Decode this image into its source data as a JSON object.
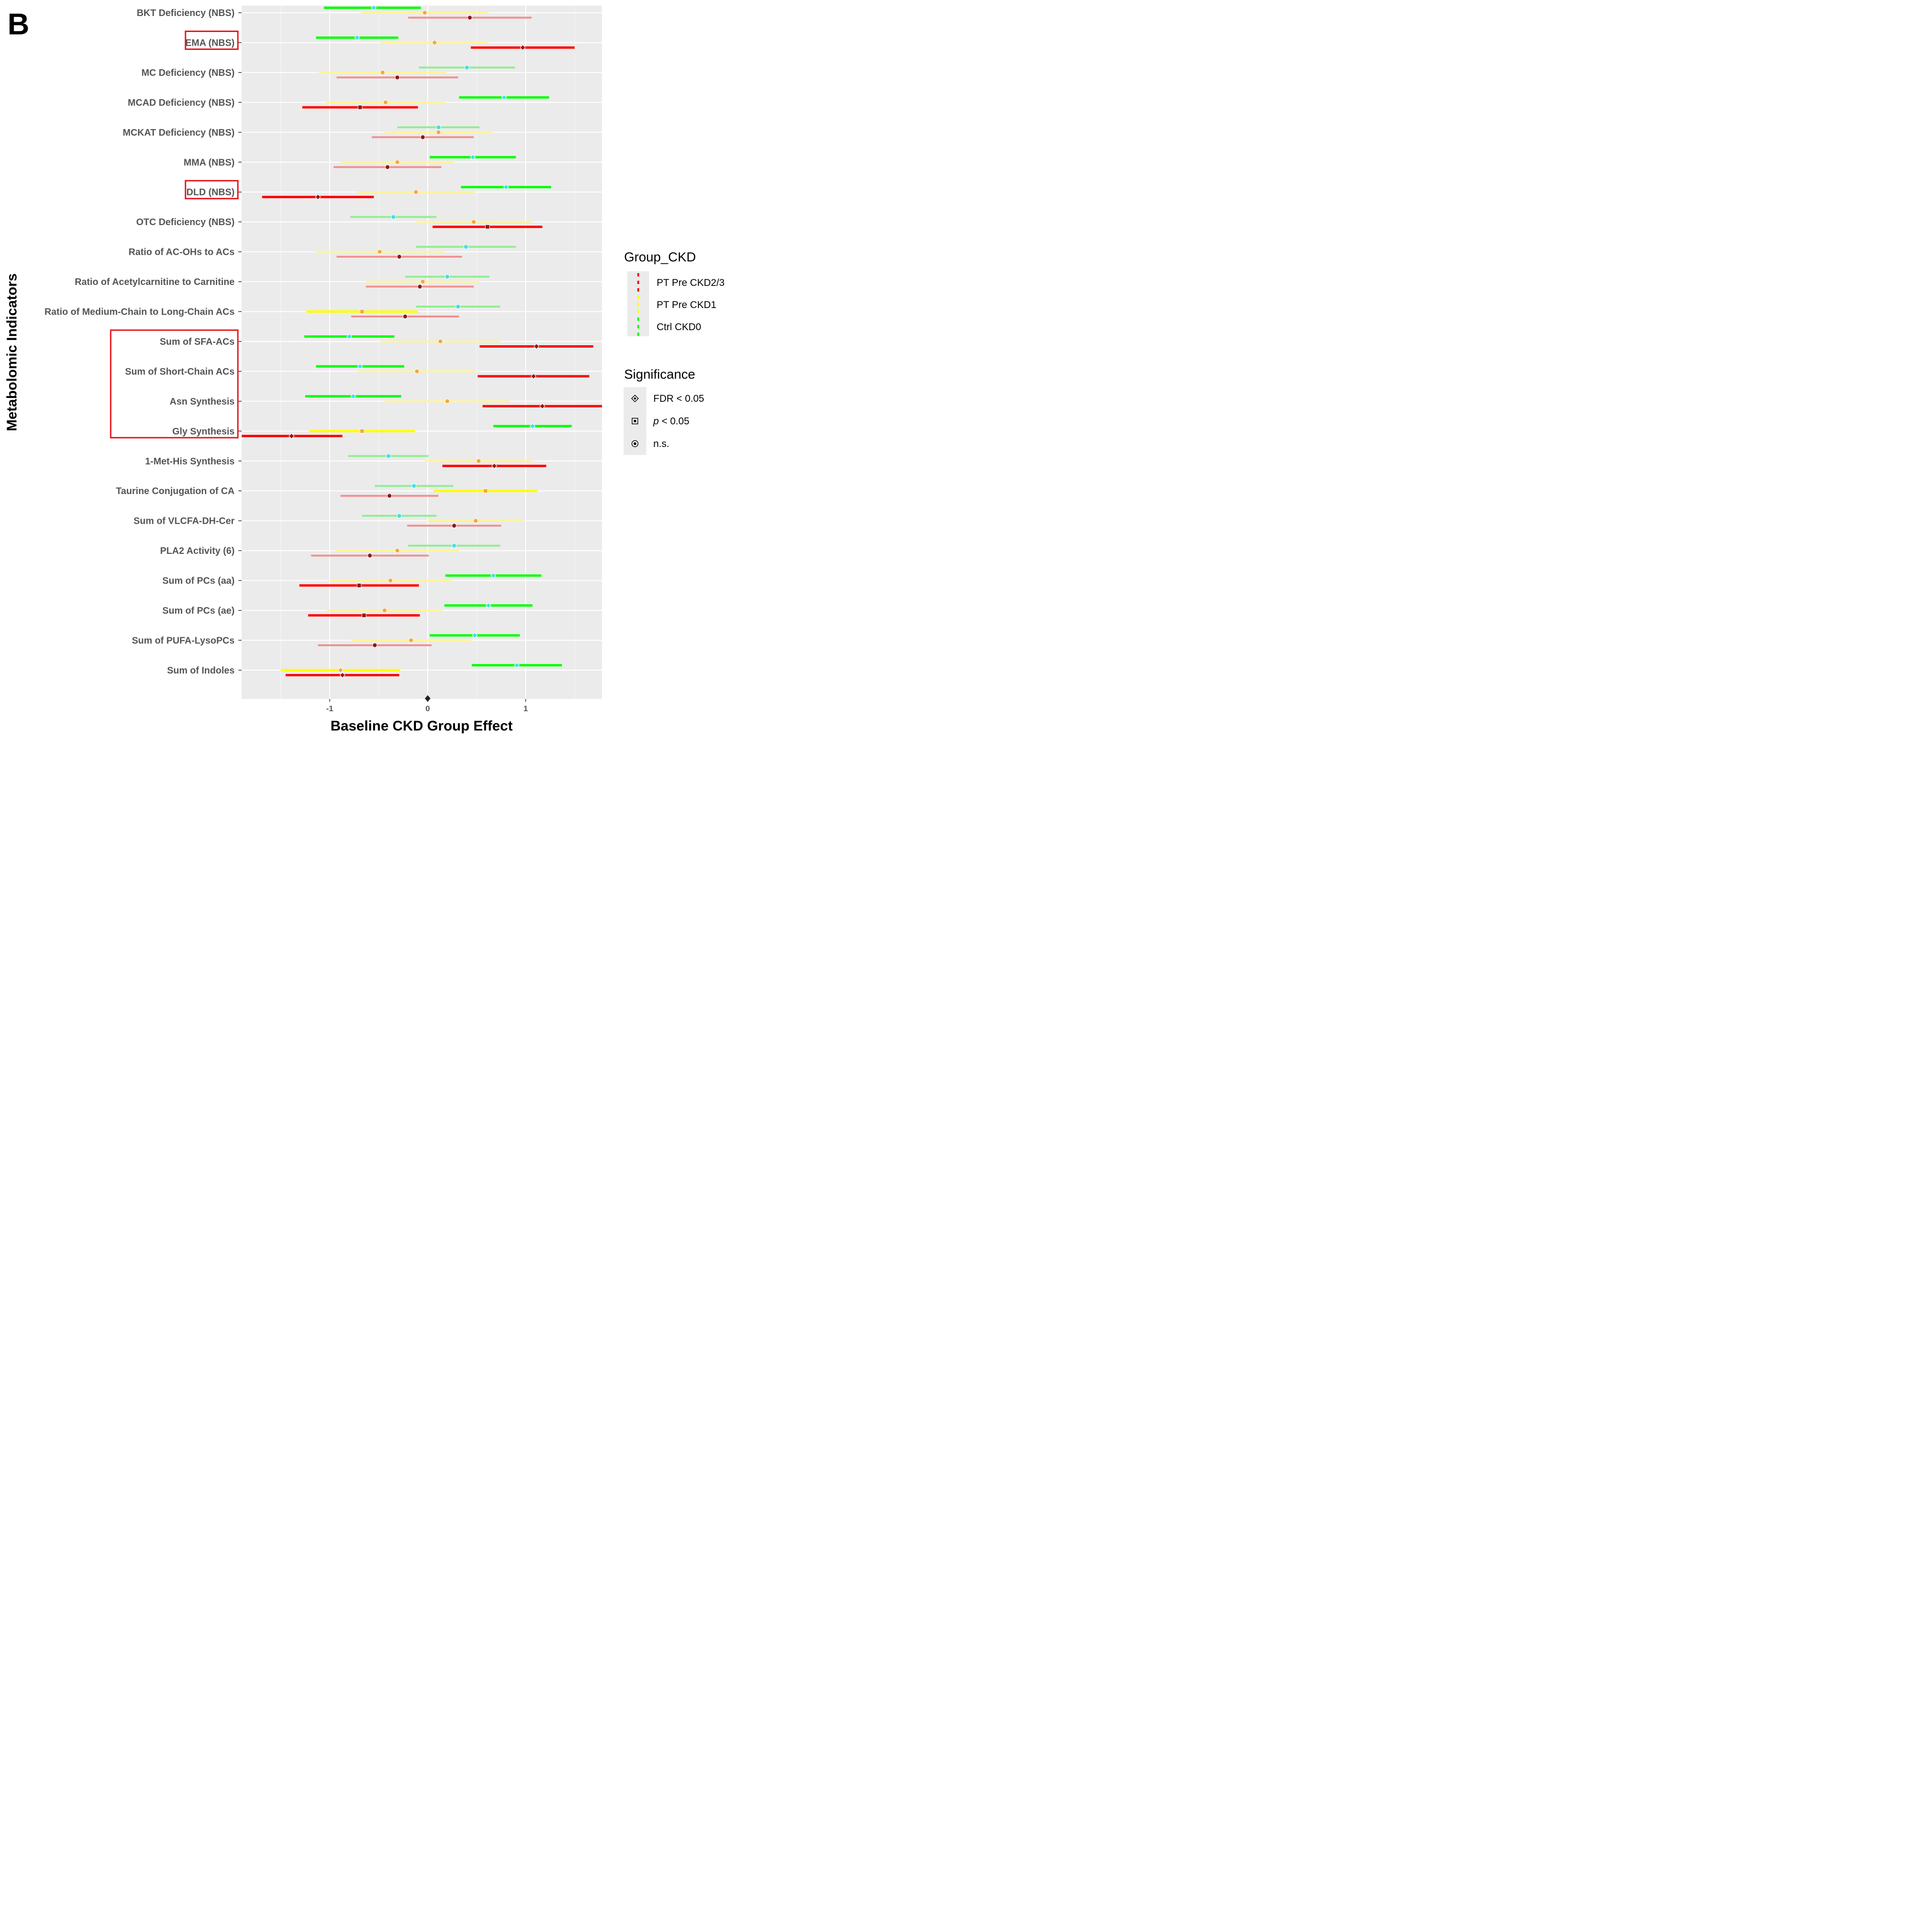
{
  "panel_label": "B",
  "chart_data": {
    "type": "forest",
    "xlabel": "Baseline CKD Group Effect",
    "ylabel": "Metabolomic Indicators",
    "xlim": [
      -1.9,
      1.8
    ],
    "xticks": [
      -1,
      0,
      1
    ],
    "xtick_labels": [
      "-1",
      "0",
      "1"
    ],
    "grid": true,
    "legend_position": "right",
    "series": [
      {
        "name": "PT Pre CKD2/3",
        "color": "#ff0000",
        "faded_color": "#f09090",
        "point_color": "#8b1a1a"
      },
      {
        "name": "PT Pre CKD1",
        "color": "#ffff00",
        "faded_color": "#fff59a",
        "point_color": "#f4a83c"
      },
      {
        "name": "Ctrl CKD0",
        "color": "#00ff00",
        "faded_color": "#90ee90",
        "point_color": "#40e0e8"
      }
    ],
    "significance": [
      {
        "label_prefix": "",
        "label": "FDR < 0.05",
        "shape": "diamond"
      },
      {
        "label_prefix": "p",
        "label": " < 0.05",
        "shape": "square"
      },
      {
        "label_prefix": "",
        "label": "n.s.",
        "shape": "circle"
      }
    ],
    "group_legend_title": "Group_CKD",
    "significance_legend_title": "Significance",
    "highlighted_indicators": [
      "EMA (NBS)",
      "DLD (NBS)",
      "Sum of SFA-ACs",
      "Sum of Short-Chain ACs",
      "Asn Synthesis",
      "Gly Synthesis"
    ],
    "indicators": [
      {
        "name": "BKT Deficiency (NBS)",
        "ckd0": [
          -0.55,
          -1.06,
          -0.07,
          "fdr"
        ],
        "ckd1": [
          -0.03,
          -0.68,
          0.62,
          "ns"
        ],
        "ckd23": [
          0.43,
          -0.2,
          1.06,
          "ns"
        ]
      },
      {
        "name": "EMA (NBS)",
        "ckd0": [
          -0.72,
          -1.14,
          -0.3,
          "fdr"
        ],
        "ckd1": [
          0.07,
          -0.48,
          0.62,
          "ns"
        ],
        "ckd23": [
          0.97,
          0.44,
          1.5,
          "fdr"
        ]
      },
      {
        "name": "MC Deficiency (NBS)",
        "ckd0": [
          0.4,
          -0.09,
          0.89,
          "ns"
        ],
        "ckd1": [
          -0.46,
          -1.11,
          0.19,
          "ns"
        ],
        "ckd23": [
          -0.31,
          -0.93,
          0.31,
          "ns"
        ]
      },
      {
        "name": "MCAD Deficiency (NBS)",
        "ckd0": [
          0.78,
          0.32,
          1.24,
          "fdr"
        ],
        "ckd1": [
          -0.43,
          -1.04,
          0.18,
          "ns"
        ],
        "ckd23": [
          -0.69,
          -1.28,
          -0.1,
          "p"
        ]
      },
      {
        "name": "MCKAT Deficiency (NBS)",
        "ckd0": [
          0.11,
          -0.31,
          0.53,
          "ns"
        ],
        "ckd1": [
          0.11,
          -0.44,
          0.66,
          "ns"
        ],
        "ckd23": [
          -0.05,
          -0.57,
          0.47,
          "ns"
        ]
      },
      {
        "name": "MMA (NBS)",
        "ckd0": [
          0.46,
          0.02,
          0.9,
          "fdr"
        ],
        "ckd1": [
          -0.31,
          -0.89,
          0.27,
          "ns"
        ],
        "ckd23": [
          -0.41,
          -0.96,
          0.14,
          "ns"
        ]
      },
      {
        "name": "DLD (NBS)",
        "ckd0": [
          0.8,
          0.34,
          1.26,
          "fdr"
        ],
        "ckd1": [
          -0.12,
          -0.72,
          0.48,
          "ns"
        ],
        "ckd23": [
          -1.12,
          -1.69,
          -0.55,
          "fdr"
        ]
      },
      {
        "name": "OTC Deficiency (NBS)",
        "ckd0": [
          -0.35,
          -0.79,
          0.09,
          "ns"
        ],
        "ckd1": [
          0.47,
          -0.12,
          1.06,
          "ns"
        ],
        "ckd23": [
          0.61,
          0.05,
          1.17,
          "p"
        ]
      },
      {
        "name": "Ratio of AC-OHs to ACs",
        "ckd0": [
          0.39,
          -0.12,
          0.9,
          "ns"
        ],
        "ckd1": [
          -0.49,
          -1.15,
          0.17,
          "ns"
        ],
        "ckd23": [
          -0.29,
          -0.93,
          0.35,
          "ns"
        ]
      },
      {
        "name": "Ratio of Acetylcarnitine to Carnitine",
        "ckd0": [
          0.2,
          -0.23,
          0.63,
          "ns"
        ],
        "ckd1": [
          -0.05,
          -0.63,
          0.53,
          "ns"
        ],
        "ckd23": [
          -0.08,
          -0.63,
          0.47,
          "ns"
        ]
      },
      {
        "name": "Ratio of Medium-Chain to Long-Chain ACs",
        "ckd0": [
          0.31,
          -0.12,
          0.74,
          "ns"
        ],
        "ckd1": [
          -0.67,
          -1.24,
          -0.1,
          "p"
        ],
        "ckd23": [
          -0.23,
          -0.78,
          0.32,
          "ns"
        ]
      },
      {
        "name": "Sum of SFA-ACs",
        "ckd0": [
          -0.8,
          -1.26,
          -0.34,
          "fdr"
        ],
        "ckd1": [
          0.13,
          -0.48,
          0.74,
          "ns"
        ],
        "ckd23": [
          1.11,
          0.53,
          1.69,
          "fdr"
        ]
      },
      {
        "name": "Sum of Short-Chain ACs",
        "ckd0": [
          -0.69,
          -1.14,
          -0.24,
          "fdr"
        ],
        "ckd1": [
          -0.11,
          -0.71,
          0.49,
          "ns"
        ],
        "ckd23": [
          1.08,
          0.51,
          1.65,
          "fdr"
        ]
      },
      {
        "name": "Asn Synthesis",
        "ckd0": [
          -0.76,
          -1.25,
          -0.27,
          "fdr"
        ],
        "ckd1": [
          0.2,
          -0.44,
          0.84,
          "ns"
        ],
        "ckd23": [
          1.17,
          0.56,
          1.78,
          "fdr"
        ]
      },
      {
        "name": "Gly Synthesis",
        "ckd0": [
          1.07,
          0.67,
          1.47,
          "fdr"
        ],
        "ckd1": [
          -0.67,
          -1.21,
          -0.13,
          "p"
        ],
        "ckd23": [
          -1.39,
          -1.9,
          -0.87,
          "fdr"
        ]
      },
      {
        "name": "1-Met-His Synthesis",
        "ckd0": [
          -0.4,
          -0.81,
          0.01,
          "ns"
        ],
        "ckd1": [
          0.52,
          -0.03,
          1.07,
          "ns"
        ],
        "ckd23": [
          0.68,
          0.15,
          1.21,
          "fdr"
        ]
      },
      {
        "name": "Taurine Conjugation of CA",
        "ckd0": [
          -0.14,
          -0.54,
          0.26,
          "ns"
        ],
        "ckd1": [
          0.59,
          0.06,
          1.12,
          "p"
        ],
        "ckd23": [
          -0.39,
          -0.89,
          0.11,
          "ns"
        ]
      },
      {
        "name": "Sum of VLCFA-DH-Cer",
        "ckd0": [
          -0.29,
          -0.67,
          0.09,
          "ns"
        ],
        "ckd1": [
          0.49,
          0.0,
          0.98,
          "ns"
        ],
        "ckd23": [
          0.27,
          -0.21,
          0.75,
          "ns"
        ]
      },
      {
        "name": "PLA2 Activity (6)",
        "ckd0": [
          0.27,
          -0.2,
          0.74,
          "ns"
        ],
        "ckd1": [
          -0.31,
          -0.94,
          0.32,
          "ns"
        ],
        "ckd23": [
          -0.59,
          -1.19,
          0.01,
          "ns"
        ]
      },
      {
        "name": "Sum of PCs (aa)",
        "ckd0": [
          0.67,
          0.18,
          1.16,
          "fdr"
        ],
        "ckd1": [
          -0.38,
          -1.0,
          0.24,
          "ns"
        ],
        "ckd23": [
          -0.7,
          -1.31,
          -0.09,
          "p"
        ]
      },
      {
        "name": "Sum of PCs (ae)",
        "ckd0": [
          0.62,
          0.17,
          1.07,
          "fdr"
        ],
        "ckd1": [
          -0.44,
          -1.03,
          0.15,
          "ns"
        ],
        "ckd23": [
          -0.65,
          -1.22,
          -0.08,
          "p"
        ]
      },
      {
        "name": "Sum of PUFA-LysoPCs",
        "ckd0": [
          0.48,
          0.02,
          0.94,
          "fdr"
        ],
        "ckd1": [
          -0.17,
          -0.78,
          0.44,
          "ns"
        ],
        "ckd23": [
          -0.54,
          -1.12,
          0.04,
          "ns"
        ]
      },
      {
        "name": "Sum of Indoles",
        "ckd0": [
          0.91,
          0.45,
          1.37,
          "fdr"
        ],
        "ckd1": [
          -0.89,
          -1.5,
          -0.28,
          "fdr"
        ],
        "ckd23": [
          -0.87,
          -1.45,
          -0.29,
          "fdr"
        ]
      }
    ]
  }
}
